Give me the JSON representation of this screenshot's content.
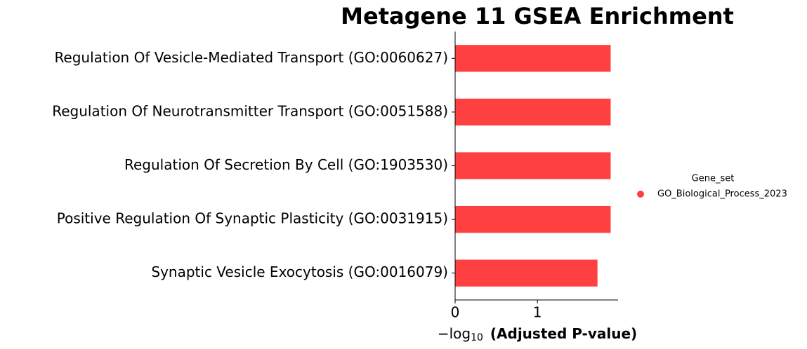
{
  "chart_data": {
    "type": "barh",
    "title": "Metagene 11 GSEA Enrichment",
    "xlabel": {
      "prefix": "−log",
      "subscript": "10",
      "text": "(Adjusted P-value)"
    },
    "categories": [
      "Regulation Of Vesicle-Mediated Transport (GO:0060627)",
      "Regulation Of Neurotransmitter Transport (GO:0051588)",
      "Regulation Of Secretion By Cell (GO:1903530)",
      "Positive Regulation Of Synaptic Plasticity (GO:0031915)",
      "Synaptic Vesicle Exocytosis (GO:0016079)"
    ],
    "series": [
      {
        "name": "GO_Biological_Process_2023",
        "color": "#ff4040",
        "values": [
          1.89,
          1.89,
          1.89,
          1.89,
          1.73
        ]
      }
    ],
    "legend_title": "Gene_set",
    "xlim": [
      0,
      1.98
    ],
    "xticks": [
      0,
      1
    ],
    "grid": false
  }
}
